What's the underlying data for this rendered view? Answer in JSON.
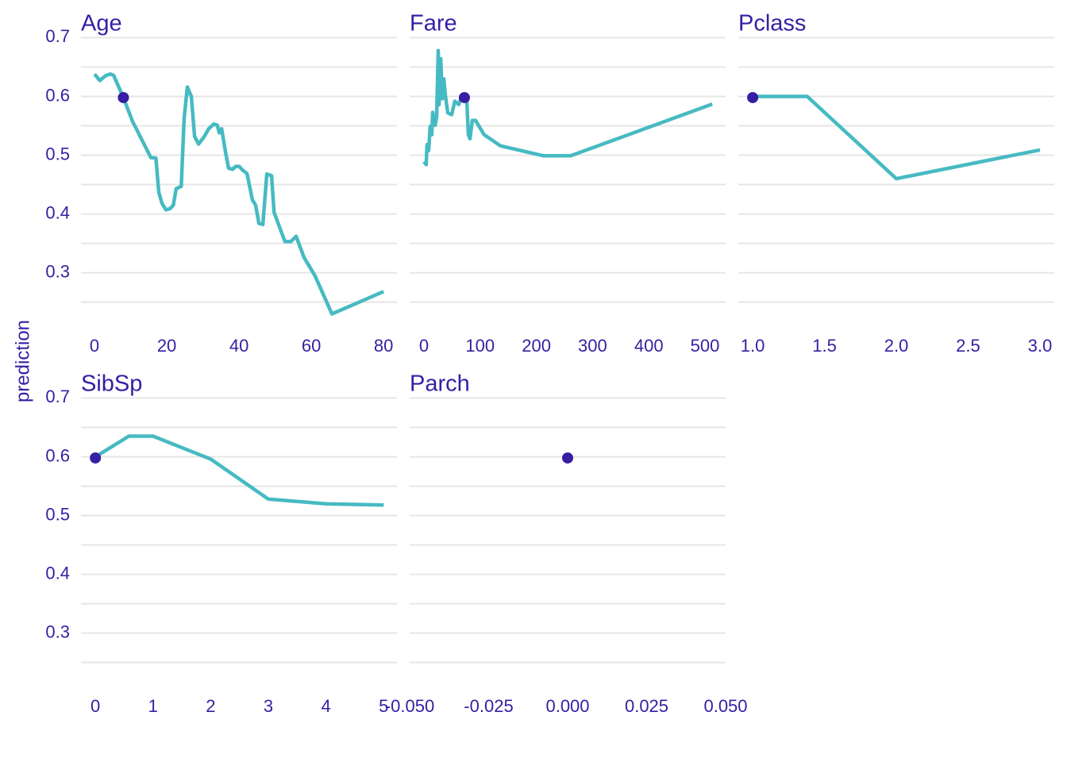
{
  "ylabel": "prediction",
  "chart_data": [
    {
      "type": "line",
      "title": "Age",
      "color": "#46bac2",
      "point_color": "#371ea3",
      "x": [
        0,
        1.5,
        3,
        4.4,
        5.3,
        8,
        10.5,
        15.6,
        17,
        17.8,
        18.7,
        19.8,
        20.9,
        21.8,
        22.6,
        24,
        24.8,
        25.7,
        26.8,
        27.7,
        28.8,
        30.3,
        31.6,
        33,
        34,
        34.5,
        35.2,
        36.3,
        37.1,
        38.2,
        39.1,
        40,
        41.1,
        42.2,
        43.7,
        44.6,
        45.5,
        46.6,
        47.7,
        49,
        49.7,
        52.7,
        54.3,
        55.8,
        58,
        61,
        62.9,
        65.7,
        80
      ],
      "values": [
        0.638,
        0.627,
        0.635,
        0.638,
        0.636,
        0.598,
        0.558,
        0.496,
        0.495,
        0.437,
        0.418,
        0.407,
        0.409,
        0.415,
        0.443,
        0.447,
        0.562,
        0.616,
        0.6,
        0.532,
        0.519,
        0.531,
        0.545,
        0.553,
        0.551,
        0.538,
        0.545,
        0.504,
        0.478,
        0.476,
        0.481,
        0.481,
        0.474,
        0.469,
        0.424,
        0.415,
        0.384,
        0.382,
        0.468,
        0.465,
        0.403,
        0.353,
        0.353,
        0.362,
        0.326,
        0.295,
        0.269,
        0.23,
        0.268
      ],
      "point": {
        "x": 8,
        "y": 0.598
      },
      "xlim": [
        -3.74,
        83.7
      ],
      "xticks": [
        0,
        20,
        40,
        60,
        80
      ],
      "ylim": [
        0.205,
        0.71
      ],
      "yticks": [
        0.3,
        0.4,
        0.5,
        0.6,
        0.7
      ],
      "yminor": [
        0.25,
        0.35,
        0.45,
        0.55,
        0.65
      ],
      "show_ytick_labels": true
    },
    {
      "type": "line",
      "title": "Fare",
      "color": "#46bac2",
      "point_color": "#371ea3",
      "x": [
        0,
        4,
        5.6,
        8.5,
        11,
        14,
        15.5,
        18,
        20,
        22.6,
        25.4,
        27,
        30,
        32.5,
        35.3,
        38,
        42.4,
        49.4,
        55,
        62,
        68,
        72,
        76,
        79,
        82,
        86,
        92,
        107,
        136,
        213,
        261,
        513
      ],
      "values": [
        0.489,
        0.484,
        0.518,
        0.508,
        0.549,
        0.535,
        0.573,
        0.559,
        0.551,
        0.565,
        0.678,
        0.586,
        0.664,
        0.596,
        0.63,
        0.603,
        0.572,
        0.569,
        0.592,
        0.586,
        0.603,
        0.598,
        0.6,
        0.535,
        0.528,
        0.559,
        0.559,
        0.535,
        0.516,
        0.499,
        0.499,
        0.587
      ],
      "point": {
        "x": 72,
        "y": 0.598
      },
      "xlim": [
        -25.4,
        536.7
      ],
      "xticks": [
        0,
        100,
        200,
        300,
        400,
        500
      ],
      "ylim": [
        0.205,
        0.71
      ],
      "yticks": [
        0.3,
        0.4,
        0.5,
        0.6,
        0.7
      ],
      "yminor": [
        0.25,
        0.35,
        0.45,
        0.55,
        0.65
      ],
      "show_ytick_labels": false
    },
    {
      "type": "line",
      "title": "Pclass",
      "color": "#46bac2",
      "point_color": "#371ea3",
      "x": [
        1,
        1.38,
        2,
        3
      ],
      "values": [
        0.6,
        0.6,
        0.46,
        0.509
      ],
      "point": {
        "x": 1,
        "y": 0.598
      },
      "xlim": [
        0.9,
        3.1
      ],
      "xticks": [
        {
          "value": 1,
          "label": "1.0"
        },
        1.5,
        {
          "value": 2,
          "label": "2.0"
        },
        2.5,
        {
          "value": 3,
          "label": "3.0"
        }
      ],
      "ylim": [
        0.205,
        0.71
      ],
      "yticks": [
        0.3,
        0.4,
        0.5,
        0.6,
        0.7
      ],
      "yminor": [
        0.25,
        0.35,
        0.45,
        0.55,
        0.65
      ],
      "show_ytick_labels": false
    },
    {
      "type": "line",
      "title": "SibSp",
      "color": "#46bac2",
      "point_color": "#371ea3",
      "x": [
        0,
        0.58,
        1,
        2,
        3,
        4,
        5
      ],
      "values": [
        0.6,
        0.635,
        0.635,
        0.596,
        0.528,
        0.52,
        0.518
      ],
      "point": {
        "x": 0,
        "y": 0.598
      },
      "xlim": [
        -0.25,
        5.23
      ],
      "xticks": [
        0,
        1,
        2,
        3,
        4,
        5
      ],
      "ylim": [
        0.205,
        0.71
      ],
      "yticks": [
        0.3,
        0.4,
        0.5,
        0.6,
        0.7
      ],
      "yminor": [
        0.25,
        0.35,
        0.45,
        0.55,
        0.65
      ],
      "show_ytick_labels": true
    },
    {
      "type": "line",
      "title": "Parch",
      "point_color": "#371ea3",
      "point": {
        "x": 0,
        "y": 0.598
      },
      "xlim": [
        -0.05,
        0.05
      ],
      "xticks": [
        {
          "value": -0.05,
          "label": "-0.050"
        },
        {
          "value": -0.025,
          "label": "-0.025"
        },
        {
          "value": 0,
          "label": "0.000"
        },
        {
          "value": 0.025,
          "label": "0.025"
        },
        {
          "value": 0.05,
          "label": "0.050"
        }
      ],
      "ylim": [
        0.205,
        0.71
      ],
      "yticks": [
        0.3,
        0.4,
        0.5,
        0.6,
        0.7
      ],
      "yminor": [
        0.25,
        0.35,
        0.45,
        0.55,
        0.65
      ],
      "show_ytick_labels": false
    }
  ]
}
